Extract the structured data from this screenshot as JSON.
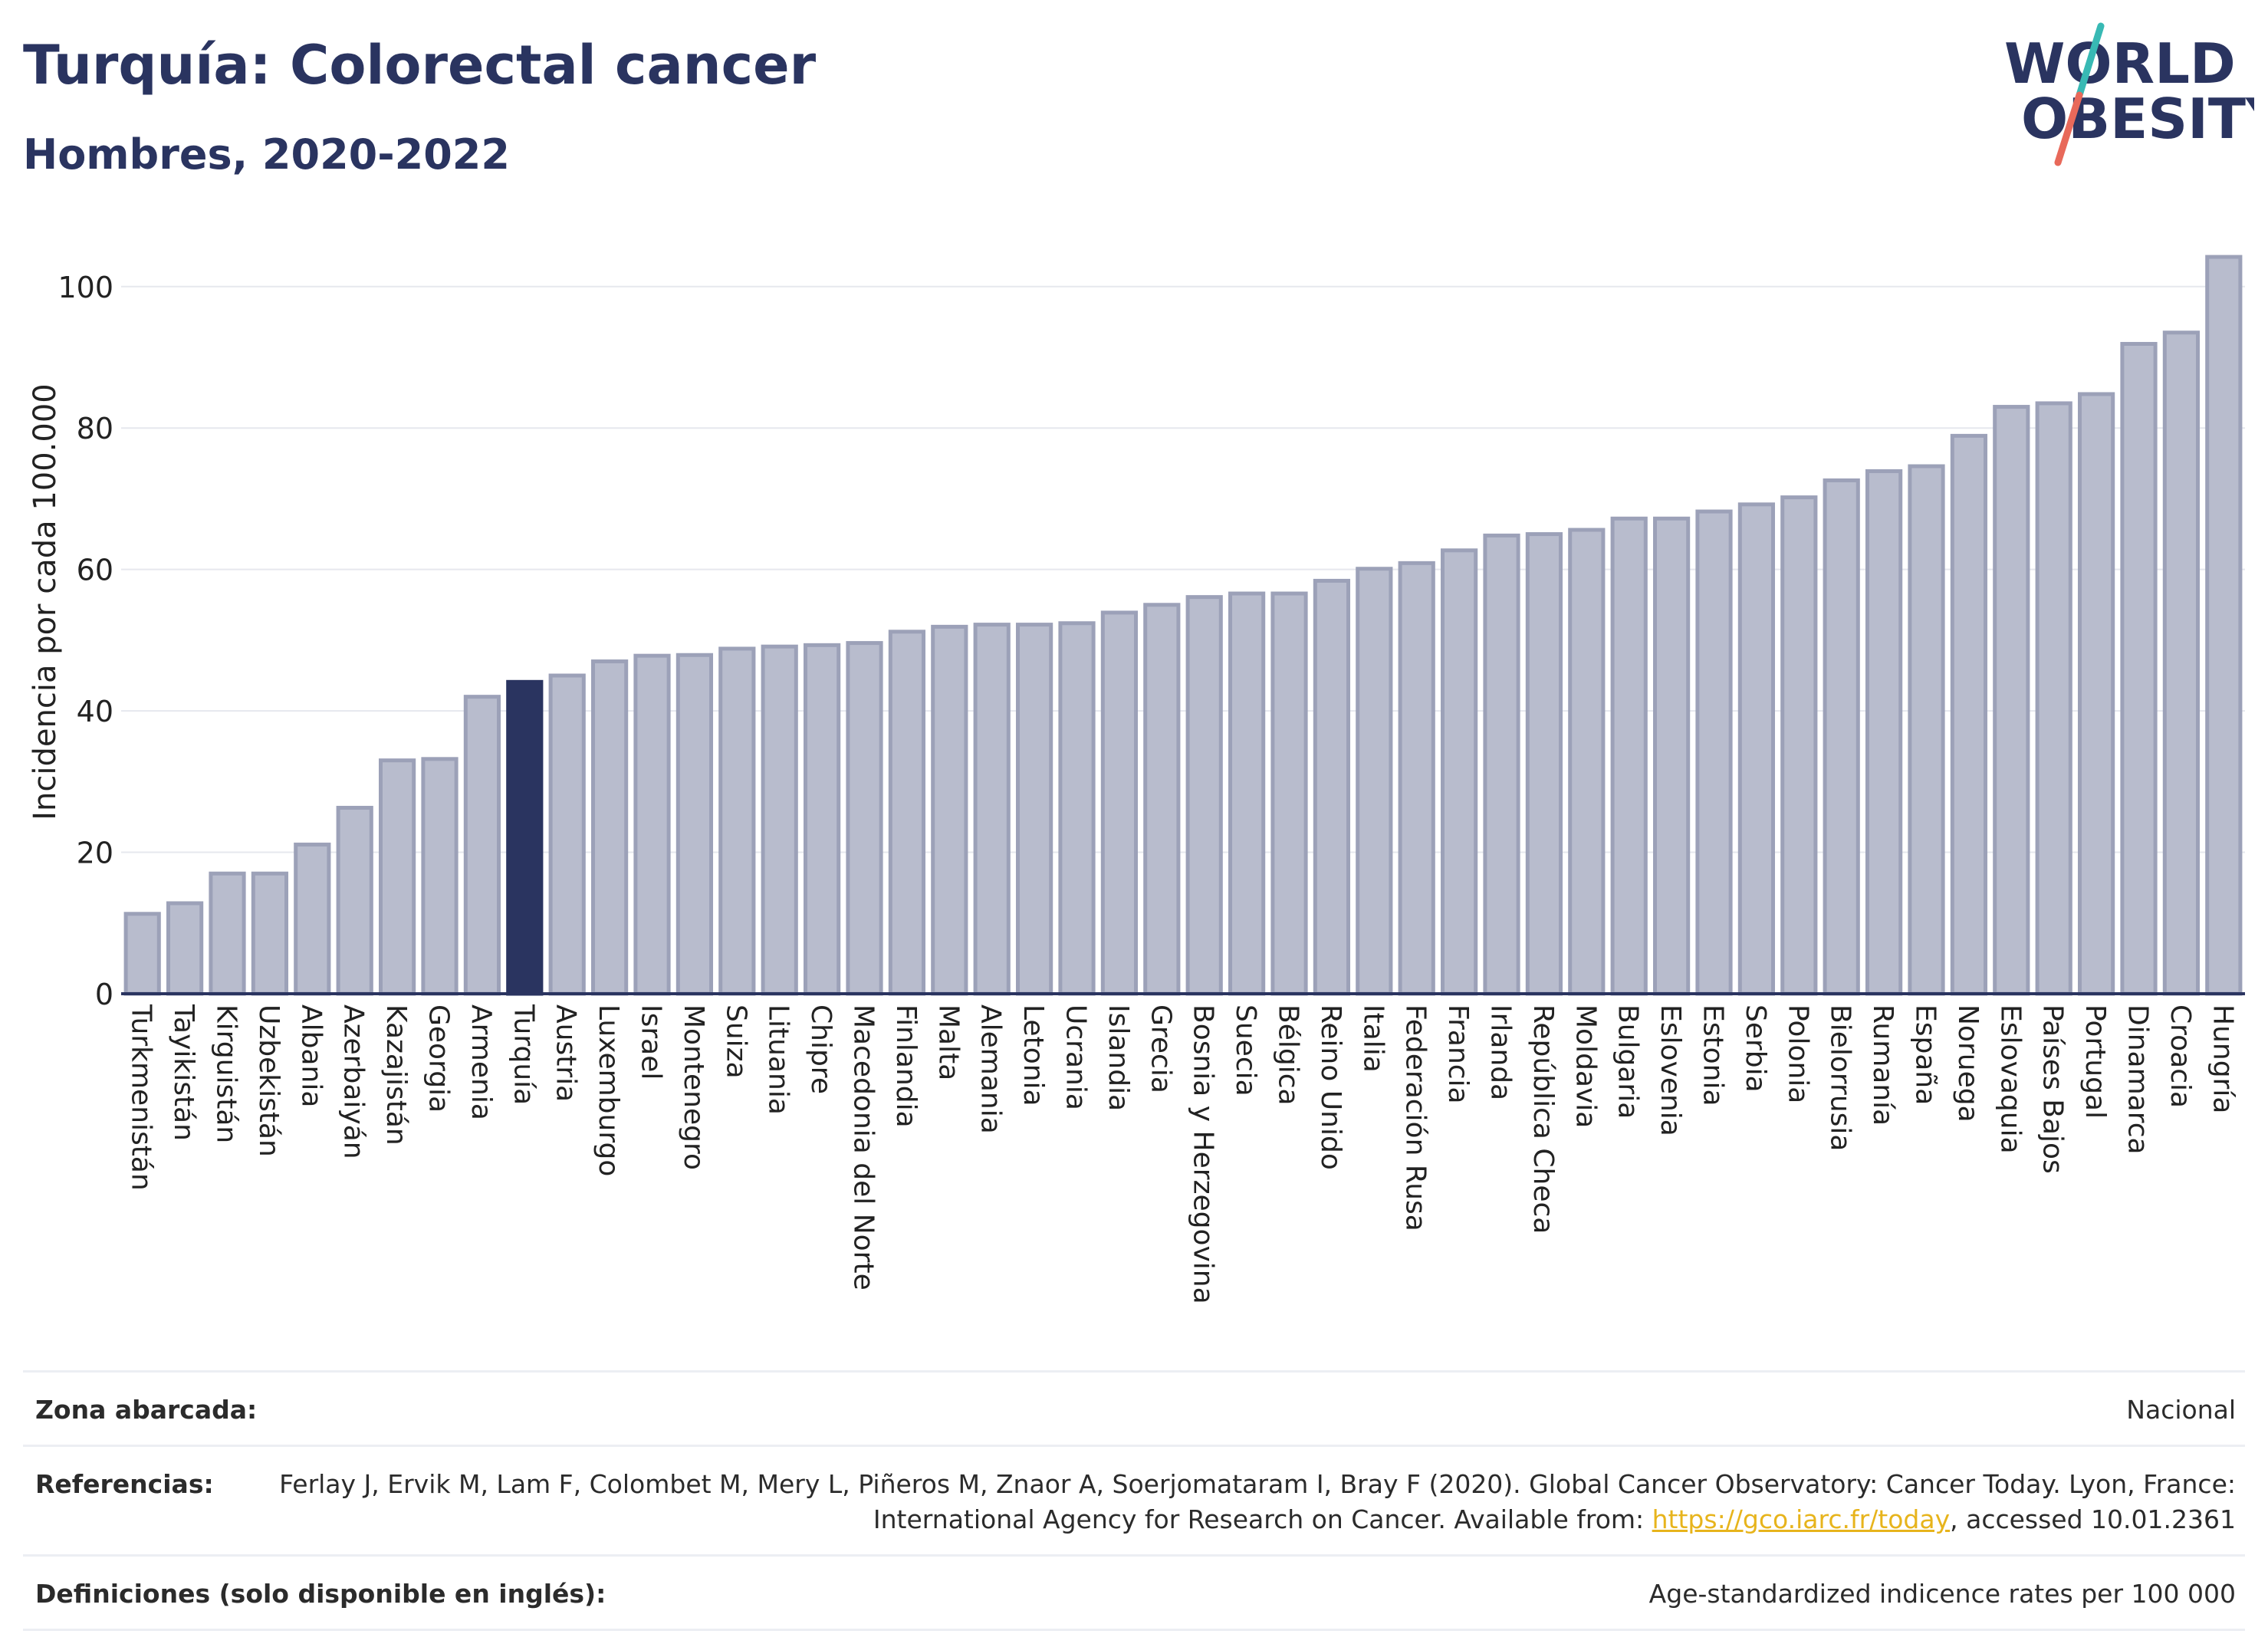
{
  "header": {
    "title": "Turquía: Colorectal cancer",
    "subtitle": "Hombres, 2020-2022"
  },
  "logo": {
    "line1": "WORLD",
    "line2": "OBESITY",
    "text_color": "#2a3460",
    "slash_top_color": "#38b9b4",
    "slash_bottom_color": "#e8695a"
  },
  "colors": {
    "bar_fill": "#b8bccd",
    "bar_stroke": "#9ca1b8",
    "highlight_fill": "#2a3460",
    "grid": "#e6e8ee",
    "axis": "#2a3460",
    "text": "#222222"
  },
  "chart_data": {
    "type": "bar",
    "title": "Turquía: Colorectal cancer",
    "subtitle": "Hombres, 2020-2022",
    "xlabel": "",
    "ylabel": "Incidencia por cada 100.000",
    "ylim": [
      0,
      108
    ],
    "yticks": [
      0,
      20,
      40,
      60,
      80,
      100
    ],
    "grid": true,
    "highlight": "Turquía",
    "categories": [
      "Turkmenistán",
      "Tayikistán",
      "Kirguistán",
      "Uzbekistán",
      "Albania",
      "Azerbaiyán",
      "Kazajistán",
      "Georgia",
      "Armenia",
      "Turquía",
      "Austria",
      "Luxemburgo",
      "Israel",
      "Montenegro",
      "Suiza",
      "Lituania",
      "Chipre",
      "Macedonia del Norte",
      "Finlandia",
      "Malta",
      "Alemania",
      "Letonia",
      "Ucrania",
      "Islandia",
      "Grecia",
      "Bosnia y Herzegovina",
      "Suecia",
      "Bélgica",
      "Reino Unido",
      "Italia",
      "Federación Rusa",
      "Francia",
      "Irlanda",
      "República Checa",
      "Moldavia",
      "Bulgaria",
      "Eslovenia",
      "Estonia",
      "Serbia",
      "Polonia",
      "Bielorrusia",
      "Rumanía",
      "España",
      "Noruega",
      "Eslovaquia",
      "Países Bajos",
      "Portugal",
      "Dinamarca",
      "Croacia",
      "Hungría"
    ],
    "values": [
      11.3,
      12.8,
      17.0,
      17.0,
      21.1,
      26.3,
      33.0,
      33.2,
      42.0,
      44.1,
      45.0,
      47.0,
      47.8,
      47.9,
      48.8,
      49.1,
      49.3,
      49.6,
      51.2,
      51.9,
      52.2,
      52.2,
      52.4,
      53.9,
      55.0,
      56.1,
      56.6,
      56.6,
      58.4,
      60.1,
      60.9,
      62.7,
      64.8,
      65.0,
      65.6,
      67.2,
      67.2,
      68.2,
      69.2,
      70.2,
      72.6,
      73.9,
      74.6,
      78.9,
      83.0,
      83.5,
      84.8,
      91.9,
      93.5,
      104.2
    ]
  },
  "footer": {
    "rows": [
      {
        "label": "Zona abarcada:",
        "value": "Nacional"
      },
      {
        "label": "Referencias:",
        "value_before": "Ferlay J, Ervik M, Lam F, Colombet M, Mery L, Piñeros M, Znaor A, Soerjomataram I, Bray F (2020). Global Cancer Observatory: Cancer Today. Lyon, France: International Agency for Research on Cancer. Available from: ",
        "link": "https://gco.iarc.fr/today",
        "value_after": ", accessed 10.01.2361"
      },
      {
        "label": "Definiciones (solo disponible en inglés):",
        "value": "Age-standardized indicence rates per 100 000"
      }
    ]
  }
}
